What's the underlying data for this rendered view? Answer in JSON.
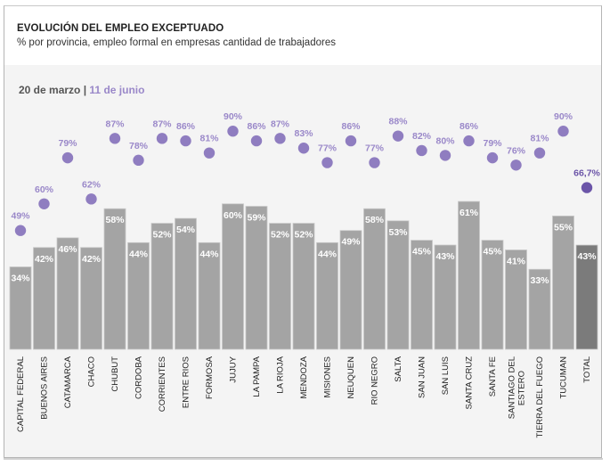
{
  "header": {
    "title": "EVOLUCIÓN DEL EMPLEO EXCEPTUADO",
    "subtitle": "% por provincia, empleo formal en empresas cantidad de trabajadores"
  },
  "legend": {
    "series_a": "20 de marzo",
    "separator": "|",
    "series_b": "11 de junio"
  },
  "colors": {
    "bar": "#a4a4a4",
    "bar_total": "#7b7b7b",
    "dot": "#8f7dc0",
    "dot_total": "#6b55a8",
    "label_purple": "#9a88c9",
    "plot_bg": "#f4f4f4"
  },
  "chart_data": {
    "type": "bar",
    "title": "EVOLUCIÓN DEL EMPLEO EXCEPTUADO",
    "subtitle": "% por provincia, empleo formal en empresas cantidad de trabajadores",
    "xlabel": "",
    "ylabel": "",
    "ylim": [
      0,
      100
    ],
    "grid": false,
    "legend_position": "top-left",
    "categories": [
      "CAPITAL FEDERAL",
      "BUENOS AIRES",
      "CATAMARCA",
      "CHACO",
      "CHUBUT",
      "CORDOBA",
      "CORRIENTES",
      "ENTRE RIOS",
      "FORMOSA",
      "JUJUY",
      "LA PAMPA",
      "LA RIOJA",
      "MENDOZA",
      "MISIONES",
      "NEUQUEN",
      "RIO NEGRO",
      "SALTA",
      "SAN JUAN",
      "SAN LUIS",
      "SANTA CRUZ",
      "SANTA FE",
      "SANTIAGO DEL ESTERO",
      "TIERRA DEL FUEGO",
      "TUCUMAN",
      "TOTAL"
    ],
    "series": [
      {
        "name": "20 de marzo",
        "mark": "bar",
        "values": [
          34,
          42,
          46,
          42,
          58,
          44,
          52,
          54,
          44,
          60,
          59,
          52,
          52,
          44,
          49,
          58,
          53,
          45,
          43,
          61,
          45,
          41,
          33,
          55,
          43
        ],
        "labels": [
          "34%",
          "42%",
          "46%",
          "42%",
          "58%",
          "44%",
          "52%",
          "54%",
          "44%",
          "60%",
          "59%",
          "52%",
          "52%",
          "44%",
          "49%",
          "58%",
          "53%",
          "45%",
          "43%",
          "61%",
          "45%",
          "41%",
          "33%",
          "55%",
          "43%"
        ]
      },
      {
        "name": "11 de junio",
        "mark": "dot",
        "values": [
          49,
          60,
          79,
          62,
          87,
          78,
          87,
          86,
          81,
          90,
          86,
          87,
          83,
          77,
          86,
          77,
          88,
          82,
          80,
          86,
          79,
          76,
          81,
          90,
          66.7
        ],
        "labels": [
          "49%",
          "60%",
          "79%",
          "62%",
          "87%",
          "78%",
          "87%",
          "86%",
          "81%",
          "90%",
          "86%",
          "87%",
          "83%",
          "77%",
          "86%",
          "77%",
          "88%",
          "82%",
          "80%",
          "86%",
          "79%",
          "76%",
          "81%",
          "90%",
          "66,7%"
        ]
      }
    ]
  }
}
